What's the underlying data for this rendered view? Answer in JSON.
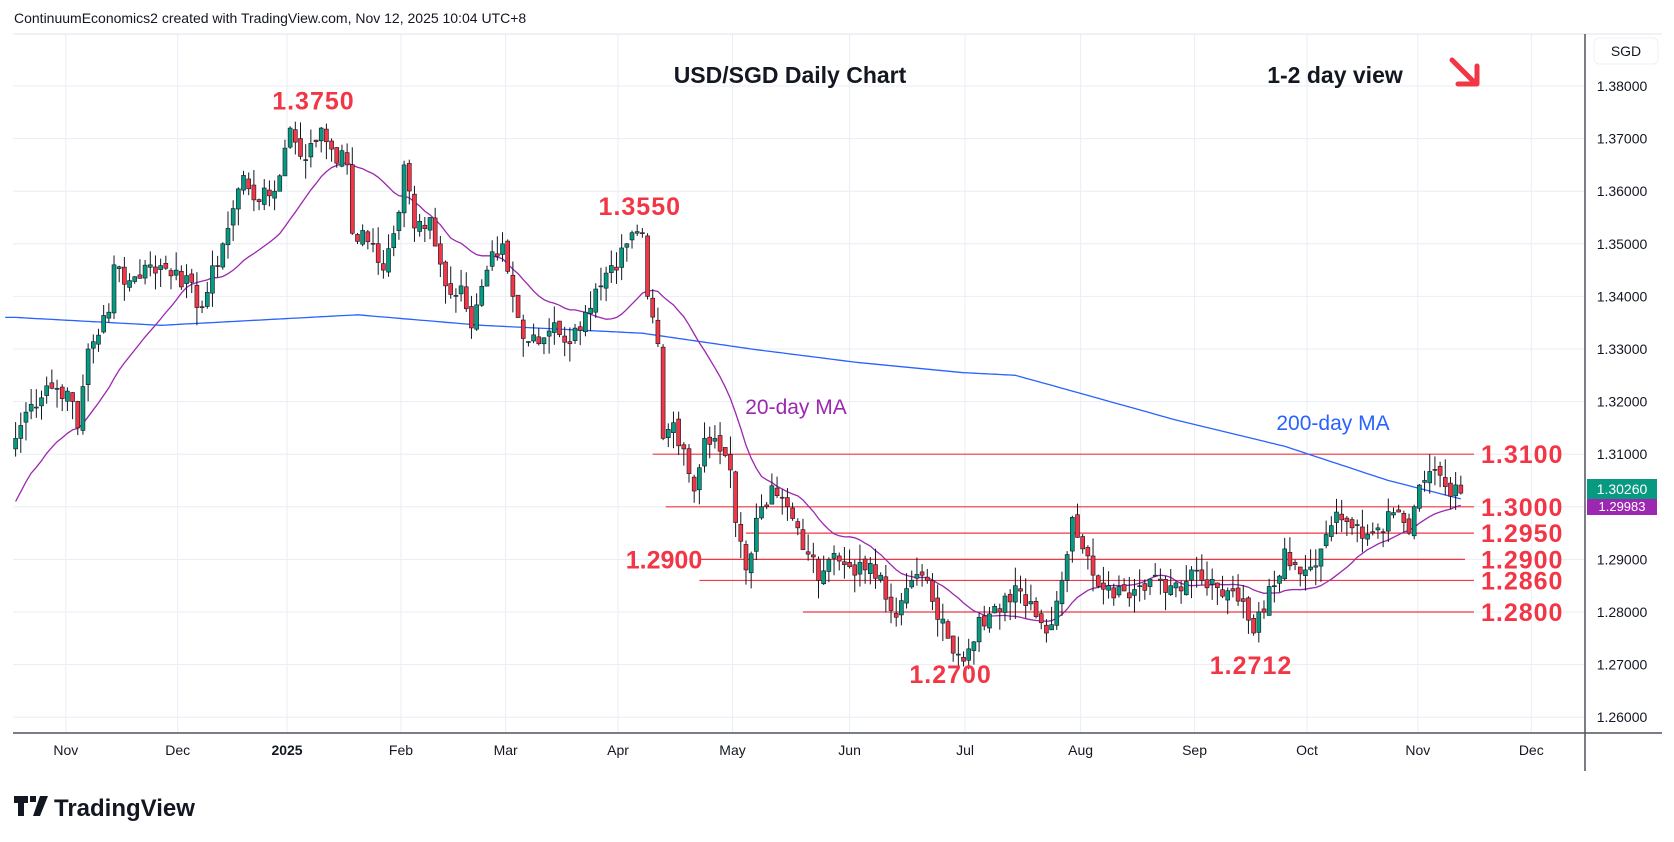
{
  "header": {
    "caption": "ContinuumEconomics2 created with TradingView.com, Nov 12, 2025 10:04 UTC+8"
  },
  "branding": {
    "logo_text": "TradingView"
  },
  "colors": {
    "up": "#089981",
    "down": "#f23645",
    "annotation": "#f23645",
    "ma20": "#9c27b0",
    "ma200": "#2962ff",
    "grid": "#e9eef5"
  },
  "chart_data": {
    "type": "candlestick",
    "title": "USD/SGD Daily Chart",
    "subtitle": "1-2 day view",
    "bias_icon": "down-right-arrow-icon",
    "currency": "SGD",
    "ylim": [
      1.255,
      1.3905
    ],
    "yticks": [
      "1.38000",
      "1.37000",
      "1.36000",
      "1.35000",
      "1.34000",
      "1.33000",
      "1.32000",
      "1.31000",
      "1.29000",
      "1.28000",
      "1.27000",
      "1.26000"
    ],
    "ytick_values": [
      1.38,
      1.37,
      1.36,
      1.35,
      1.34,
      1.33,
      1.32,
      1.31,
      1.29,
      1.28,
      1.27,
      1.26
    ],
    "xlim_days": [
      0,
      302
    ],
    "xticks": [
      {
        "label": "Nov",
        "day": 9.7,
        "bold": false
      },
      {
        "label": "Dec",
        "day": 31.3,
        "bold": false
      },
      {
        "label": "2025",
        "day": 52.4,
        "bold": true
      },
      {
        "label": "Feb",
        "day": 74.4,
        "bold": false
      },
      {
        "label": "Mar",
        "day": 94.6,
        "bold": false
      },
      {
        "label": "Apr",
        "day": 116.3,
        "bold": false
      },
      {
        "label": "May",
        "day": 138.4,
        "bold": false
      },
      {
        "label": "Jun",
        "day": 161,
        "bold": false
      },
      {
        "label": "Jul",
        "day": 183.3,
        "bold": false
      },
      {
        "label": "Aug",
        "day": 205.6,
        "bold": false
      },
      {
        "label": "Sep",
        "day": 227.6,
        "bold": false
      },
      {
        "label": "Oct",
        "day": 249.3,
        "bold": false
      },
      {
        "label": "Nov",
        "day": 270.7,
        "bold": false
      },
      {
        "label": "Dec",
        "day": 292.6,
        "bold": false
      }
    ],
    "close_anchors": [
      [
        0,
        1.313
      ],
      [
        2,
        1.318
      ],
      [
        6,
        1.323
      ],
      [
        10,
        1.322
      ],
      [
        12,
        1.315
      ],
      [
        14,
        1.33
      ],
      [
        18,
        1.337
      ],
      [
        19,
        1.346
      ],
      [
        22,
        1.343
      ],
      [
        26,
        1.346
      ],
      [
        31,
        1.345
      ],
      [
        36,
        1.338
      ],
      [
        40,
        1.35
      ],
      [
        44,
        1.363
      ],
      [
        47,
        1.358
      ],
      [
        50,
        1.36
      ],
      [
        53,
        1.372
      ],
      [
        56,
        1.366
      ],
      [
        59,
        1.372
      ],
      [
        61,
        1.368
      ],
      [
        64,
        1.365
      ],
      [
        65,
        1.352
      ],
      [
        69,
        1.35
      ],
      [
        71,
        1.345
      ],
      [
        74,
        1.356
      ],
      [
        75,
        1.365
      ],
      [
        77,
        1.353
      ],
      [
        80,
        1.355
      ],
      [
        83,
        1.342
      ],
      [
        86,
        1.342
      ],
      [
        88,
        1.334
      ],
      [
        91,
        1.345
      ],
      [
        94,
        1.35
      ],
      [
        96,
        1.34
      ],
      [
        98,
        1.332
      ],
      [
        101,
        1.331
      ],
      [
        104,
        1.335
      ],
      [
        107,
        1.331
      ],
      [
        110,
        1.337
      ],
      [
        113,
        1.342
      ],
      [
        116,
        1.345
      ],
      [
        118,
        1.35
      ],
      [
        121,
        1.352
      ],
      [
        122,
        1.34
      ],
      [
        124,
        1.331
      ],
      [
        125,
        1.313
      ],
      [
        127,
        1.316
      ],
      [
        129,
        1.311
      ],
      [
        131,
        1.303
      ],
      [
        133,
        1.313
      ],
      [
        135,
        1.313
      ],
      [
        138,
        1.307
      ],
      [
        139,
        1.297
      ],
      [
        141,
        1.288
      ],
      [
        144,
        1.3
      ],
      [
        146,
        1.304
      ],
      [
        149,
        1.3
      ],
      [
        151,
        1.296
      ],
      [
        153,
        1.291
      ],
      [
        155,
        1.286
      ],
      [
        157,
        1.29
      ],
      [
        160,
        1.289
      ],
      [
        164,
        1.288
      ],
      [
        167,
        1.287
      ],
      [
        170,
        1.279
      ],
      [
        173,
        1.286
      ],
      [
        175,
        1.287
      ],
      [
        177,
        1.282
      ],
      [
        180,
        1.275
      ],
      [
        182,
        1.272
      ],
      [
        184,
        1.273
      ],
      [
        186,
        1.279
      ],
      [
        190,
        1.28
      ],
      [
        193,
        1.285
      ],
      [
        196,
        1.282
      ],
      [
        199,
        1.276
      ],
      [
        202,
        1.286
      ],
      [
        204,
        1.298
      ],
      [
        206,
        1.292
      ],
      [
        208,
        1.287
      ],
      [
        211,
        1.285
      ],
      [
        214,
        1.284
      ],
      [
        217,
        1.285
      ],
      [
        220,
        1.287
      ],
      [
        223,
        1.285
      ],
      [
        225,
        1.284
      ],
      [
        227,
        1.288
      ],
      [
        229,
        1.286
      ],
      [
        233,
        1.283
      ],
      [
        235,
        1.284
      ],
      [
        237,
        1.282
      ],
      [
        239,
        1.276
      ],
      [
        240,
        1.28
      ],
      [
        243,
        1.285
      ],
      [
        245,
        1.292
      ],
      [
        247,
        1.289
      ],
      [
        249,
        1.288
      ],
      [
        252,
        1.292
      ],
      [
        255,
        1.299
      ],
      [
        258,
        1.296
      ],
      [
        260,
        1.294
      ],
      [
        263,
        1.296
      ],
      [
        267,
        1.299
      ],
      [
        269,
        1.295
      ],
      [
        270,
        1.3
      ],
      [
        272,
        1.305
      ],
      [
        274,
        1.307
      ],
      [
        275,
        1.306
      ],
      [
        277,
        1.302
      ],
      [
        279,
        1.3026
      ]
    ],
    "ma200_anchors": [
      [
        0,
        1.336
      ],
      [
        28,
        1.3345
      ],
      [
        66,
        1.3365
      ],
      [
        90,
        1.3345
      ],
      [
        121,
        1.333
      ],
      [
        142,
        1.33
      ],
      [
        162,
        1.3275
      ],
      [
        183,
        1.3255
      ],
      [
        193,
        1.325
      ],
      [
        204,
        1.322
      ],
      [
        224,
        1.3165
      ],
      [
        245,
        1.3115
      ],
      [
        265,
        1.305
      ],
      [
        279,
        1.3015
      ]
    ],
    "series_labels": {
      "ma20": "20-day MA",
      "ma200": "200-day MA"
    },
    "last_price": "1.30260",
    "ma20_last": "1.29983",
    "levels": [
      {
        "value": 1.31,
        "label": "1.3100",
        "from_day": 123
      },
      {
        "value": 1.3,
        "label": "1.3000",
        "from_day": 125.5
      },
      {
        "value": 1.295,
        "label": "1.2950",
        "from_day": 141
      },
      {
        "value": 1.29,
        "label": "1.2900",
        "from_day": 132,
        "label_side": "left"
      },
      {
        "value": 1.286,
        "label": "1.2860",
        "from_day": 132
      },
      {
        "value": 1.28,
        "label": "1.2800",
        "from_day": 152
      }
    ],
    "annotations": [
      {
        "label": "1.3750",
        "day": 57.5,
        "price": 1.3755
      },
      {
        "label": "1.3550",
        "day": 120.5,
        "price": 1.3555
      },
      {
        "label": "1.2700",
        "day": 180.5,
        "price": 1.2665
      },
      {
        "label": "1.2712",
        "day": 238.5,
        "price": 1.2682
      }
    ]
  }
}
